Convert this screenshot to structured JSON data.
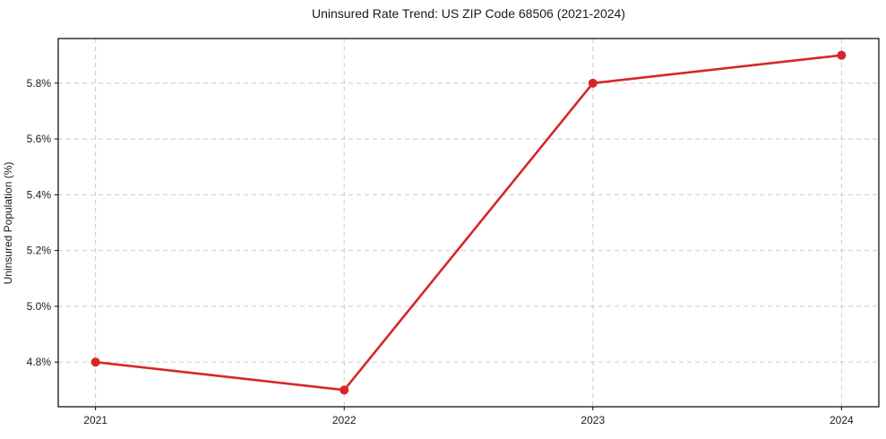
{
  "chart_data": {
    "type": "line",
    "title": "Uninsured Rate Trend: US ZIP Code 68506 (2021-2024)",
    "xlabel": "",
    "ylabel": "Uninsured Population (%)",
    "x": [
      2021,
      2022,
      2023,
      2024
    ],
    "x_tick_labels": [
      "2021",
      "2022",
      "2023",
      "2024"
    ],
    "series": [
      {
        "name": "uninsured-rate",
        "values": [
          4.8,
          4.7,
          5.8,
          5.9
        ]
      }
    ],
    "y_ticks": [
      4.8,
      5.0,
      5.2,
      5.4,
      5.6,
      5.8
    ],
    "y_tick_labels": [
      "4.8%",
      "5.0%",
      "5.2%",
      "5.4%",
      "5.6%",
      "5.8%"
    ],
    "xlim": [
      2020.85,
      2024.15
    ],
    "ylim": [
      4.64,
      5.96
    ],
    "grid": true,
    "grid_style": "dashed",
    "legend": false,
    "colors": {
      "line": "#d62728",
      "marker": "#d62728",
      "grid": "#cccccc",
      "spine": "#000000",
      "background": "#ffffff"
    }
  }
}
